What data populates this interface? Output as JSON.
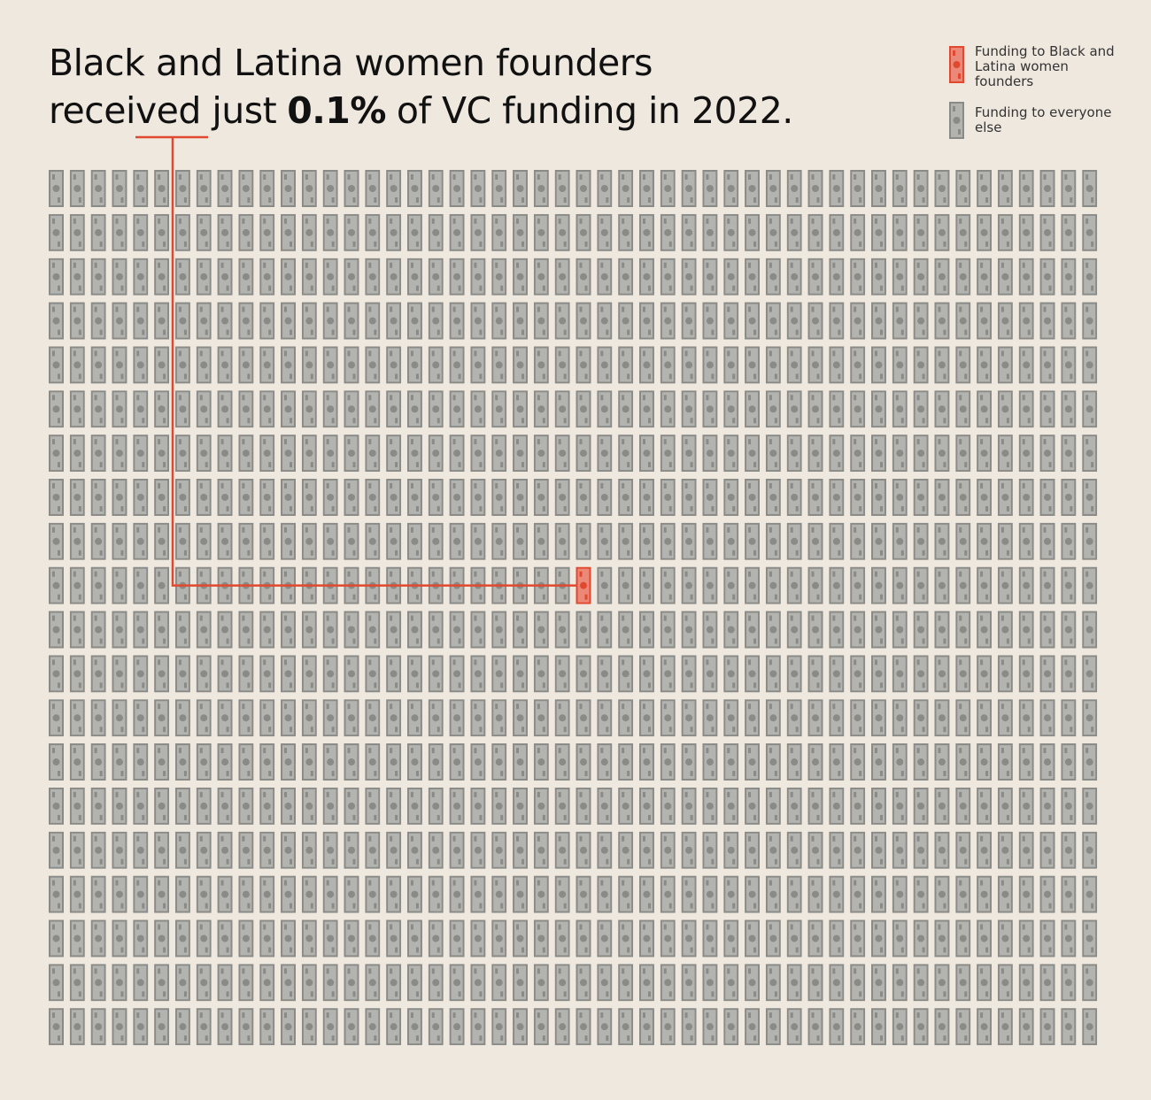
{
  "chart_data": {
    "type": "waffle",
    "title": [
      "Black and Latina women founders",
      "received just",
      "0.1%",
      "of VC funding in 2022."
    ],
    "series": [
      {
        "name": "Funding to Black and Latina women founders",
        "color": "#e0492f",
        "values": [
          0.1
        ]
      },
      {
        "name": "Funding to everyone else",
        "color": "#8a8a86",
        "values": [
          99.9
        ]
      }
    ]
  }
}
